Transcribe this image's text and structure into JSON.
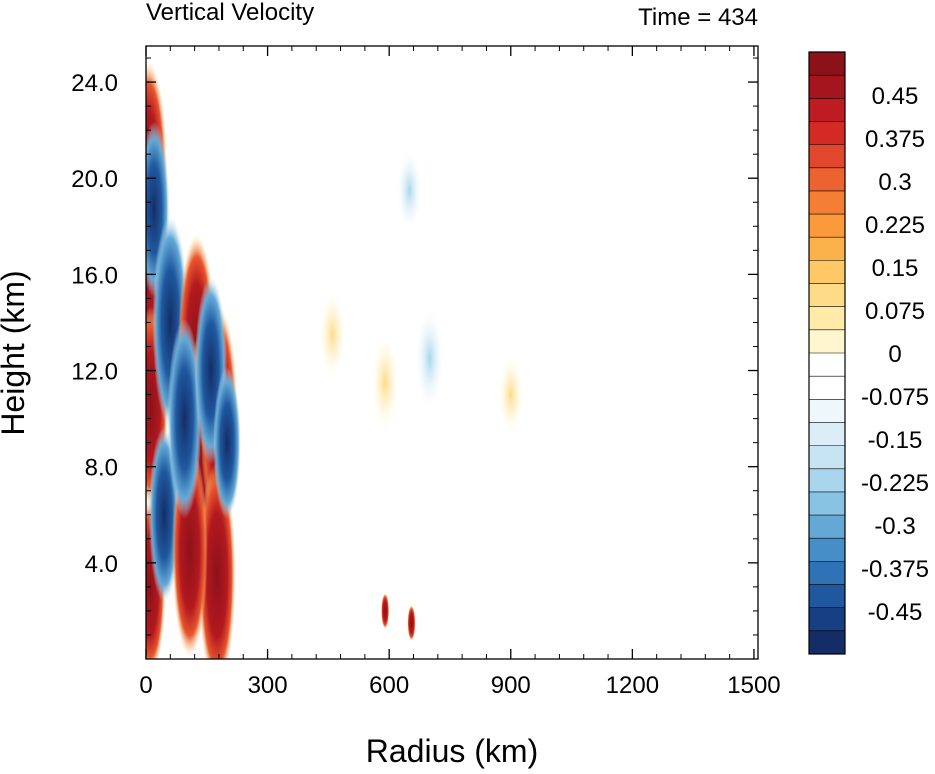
{
  "chart_data": {
    "type": "heatmap",
    "title": "Vertical Velocity",
    "subtitle": "Time = 434",
    "xlabel": "Radius (km)",
    "ylabel": "Height (km)",
    "xlim": [
      0,
      1510
    ],
    "ylim": [
      0,
      25.5
    ],
    "x_ticks": [
      0,
      300,
      600,
      900,
      1200,
      1500
    ],
    "x_tick_labels": [
      "0",
      "300",
      "600",
      "900",
      "1200",
      "1500"
    ],
    "y_ticks": [
      4,
      8,
      12,
      16,
      20,
      24
    ],
    "y_tick_labels": [
      "4.0",
      "8.0",
      "12.0",
      "16.0",
      "20.0",
      "24.0"
    ],
    "grid": false,
    "colorbar": {
      "position": "right",
      "range": [
        -0.525,
        0.525
      ],
      "interval": 0.0375,
      "labels": [
        "0.45",
        "0.375",
        "0.3",
        "0.225",
        "0.15",
        "0.075",
        "0",
        "-0.075",
        "-0.15",
        "-0.225",
        "-0.3",
        "-0.375",
        "-0.45"
      ],
      "label_values": [
        0.45,
        0.375,
        0.3,
        0.225,
        0.15,
        0.075,
        0,
        -0.075,
        -0.15,
        -0.225,
        -0.3,
        -0.375,
        -0.45
      ],
      "colors": [
        "#8c1219",
        "#a5151e",
        "#be1b23",
        "#d42a26",
        "#e0472c",
        "#ec6330",
        "#f47e33",
        "#fa9a3a",
        "#fcb24b",
        "#fdc865",
        "#fedb86",
        "#ffeaa8",
        "#fff5cf",
        "#ffffff",
        "#ffffff",
        "#eef7fb",
        "#dbeef7",
        "#c6e4f1",
        "#a9d6ec",
        "#88c3e3",
        "#64a9d6",
        "#458ec8",
        "#2f72b5",
        "#1f589f",
        "#163f84",
        "#142d66"
      ]
    },
    "features": [
      {
        "kind": "updraft",
        "r": 6,
        "z": 20.2,
        "w": 0.6
      },
      {
        "kind": "updraft",
        "r": 6,
        "z": 16.8,
        "w": 0.6
      },
      {
        "kind": "updraft",
        "r": 12,
        "z": 10.5,
        "w": 0.5
      },
      {
        "kind": "updraft",
        "r": 10,
        "z": 3.0,
        "w": 0.4
      },
      {
        "kind": "downdraft",
        "r": 20,
        "z": 18.7,
        "w": -0.4
      },
      {
        "kind": "downdraft",
        "r": 60,
        "z": 14.0,
        "w": -0.55
      },
      {
        "kind": "downdraft",
        "r": 45,
        "z": 6.0,
        "w": -0.4
      },
      {
        "kind": "updraft",
        "r": 125,
        "z": 13.0,
        "w": 0.6
      },
      {
        "kind": "updraft",
        "r": 140,
        "z": 9.0,
        "w": 0.6
      },
      {
        "kind": "updraft",
        "r": 180,
        "z": 10.0,
        "w": 0.6
      },
      {
        "kind": "updraft",
        "r": 175,
        "z": 3.5,
        "w": 0.6
      },
      {
        "kind": "updraft",
        "r": 108,
        "z": 4.5,
        "w": 0.55
      },
      {
        "kind": "downdraft",
        "r": 95,
        "z": 10.0,
        "w": -0.5
      },
      {
        "kind": "downdraft",
        "r": 160,
        "z": 12.0,
        "w": -0.45
      },
      {
        "kind": "downdraft",
        "r": 200,
        "z": 9.0,
        "w": -0.3
      },
      {
        "kind": "downdraft",
        "r": 700,
        "z": 12.5,
        "w": -0.12
      },
      {
        "kind": "downdraft",
        "r": 650,
        "z": 19.5,
        "w": -0.07
      },
      {
        "kind": "updraft",
        "r": 590,
        "z": 2.0,
        "w": 0.6
      },
      {
        "kind": "updraft",
        "r": 655,
        "z": 1.5,
        "w": 0.55
      },
      {
        "kind": "updraft",
        "r": 590,
        "z": 11.5,
        "w": 0.1
      },
      {
        "kind": "updraft",
        "r": 460,
        "z": 13.5,
        "w": 0.08
      },
      {
        "kind": "updraft",
        "r": 900,
        "z": 11.0,
        "w": 0.06
      }
    ]
  }
}
